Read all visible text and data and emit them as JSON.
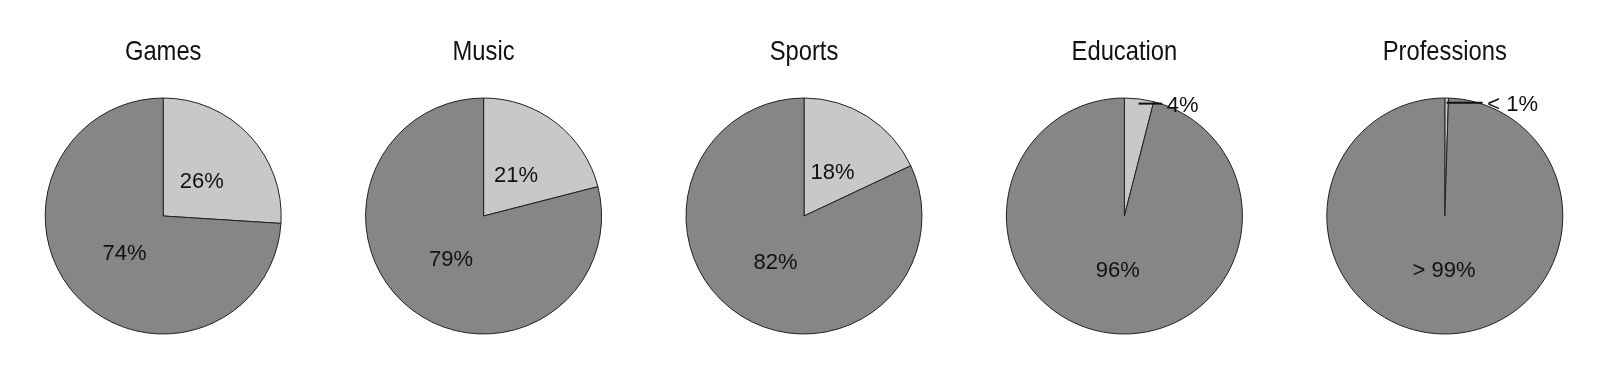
{
  "chart_data": [
    {
      "type": "pie",
      "title": "Games",
      "categories": [
        null,
        null
      ],
      "values": [
        26,
        74
      ],
      "colors": [
        "#c8c8c8",
        "#868686"
      ],
      "value_labels": [
        "26%",
        "74%"
      ]
    },
    {
      "type": "pie",
      "title": "Music",
      "categories": [
        null,
        null
      ],
      "values": [
        21,
        79
      ],
      "colors": [
        "#c8c8c8",
        "#868686"
      ],
      "value_labels": [
        "21%",
        "79%"
      ]
    },
    {
      "type": "pie",
      "title": "Sports",
      "categories": [
        null,
        null
      ],
      "values": [
        18,
        82
      ],
      "colors": [
        "#c8c8c8",
        "#868686"
      ],
      "value_labels": [
        "18%",
        "82%"
      ]
    },
    {
      "type": "pie",
      "title": "Education",
      "categories": [
        null,
        null
      ],
      "values": [
        4,
        96
      ],
      "colors": [
        "#c8c8c8",
        "#868686"
      ],
      "value_labels": [
        "4%",
        "96%"
      ]
    },
    {
      "type": "pie",
      "title": "Professions",
      "categories": [
        null,
        null
      ],
      "values": [
        0.5,
        99.5
      ],
      "colors": [
        "#c8c8c8",
        "#868686"
      ],
      "value_labels": [
        "< 1%",
        "> 99%"
      ]
    }
  ]
}
